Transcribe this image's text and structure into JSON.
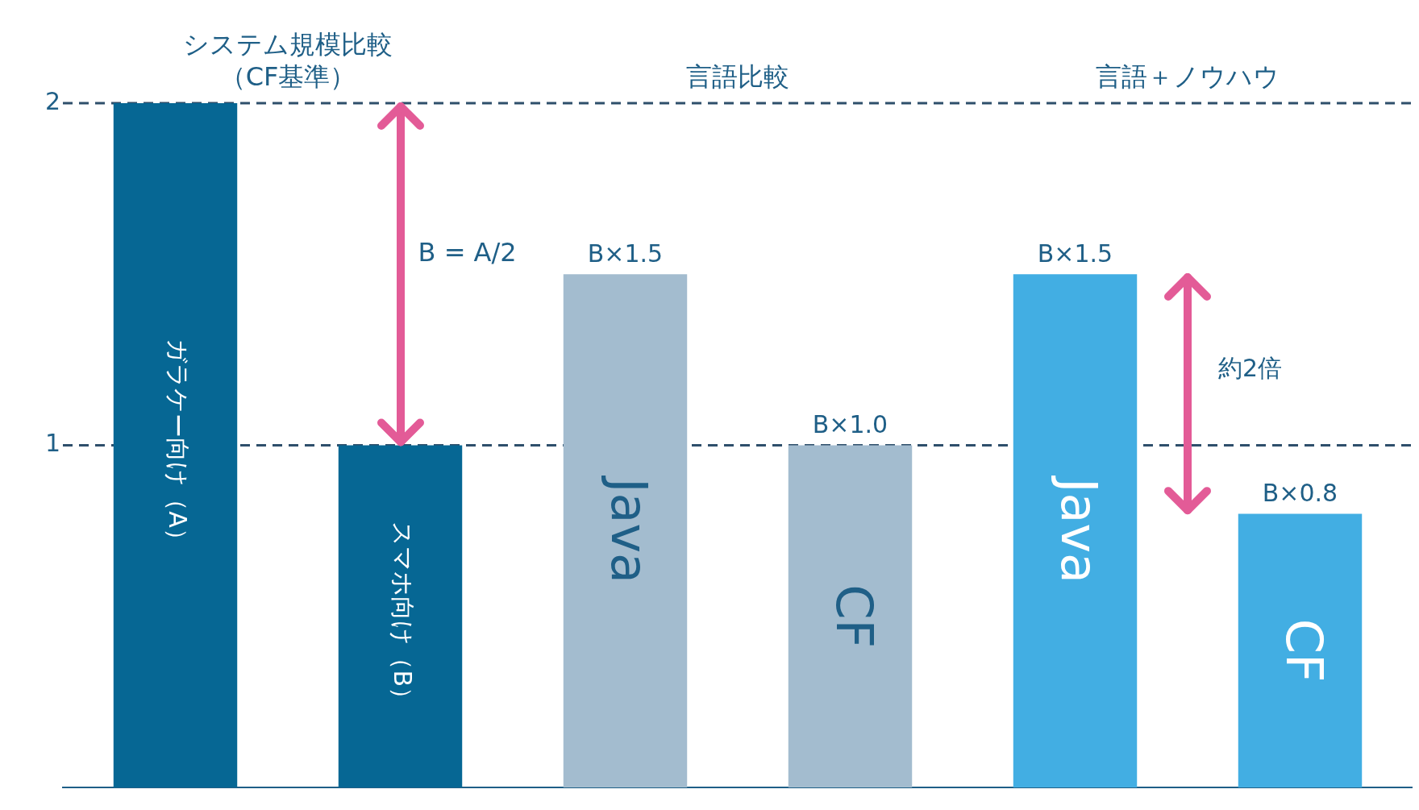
{
  "chart_data": {
    "type": "bar",
    "categories": [
      "ガラケー向け（A）",
      "スマホ向け（B）",
      "Java",
      "CF",
      "Java",
      "CF"
    ],
    "values": [
      2,
      1,
      1.5,
      1.0,
      1.5,
      0.8
    ],
    "colors": [
      "#066794",
      "#066794",
      "#a3bccf",
      "#a3bccf",
      "#42aee3",
      "#42aee3"
    ],
    "value_labels": [
      null,
      null,
      "B×1.5",
      "B×1.0",
      "B×1.5",
      "B×0.8"
    ],
    "annotations": [
      "システム規模比較（CF基準）",
      "言語比較",
      "言語＋ノウハウ",
      "B = A/2",
      "約2倍"
    ],
    "ref_lines": [
      {
        "axis": "y",
        "value": 1,
        "color": "#2e4f6b",
        "line_style": "dashed"
      },
      {
        "axis": "y",
        "value": 2,
        "color": "#2e4f6b",
        "line_style": "dashed"
      }
    ],
    "ylim": [
      0,
      2
    ],
    "yticks": [
      1,
      2
    ],
    "tick_labels": "y",
    "legend": false
  }
}
